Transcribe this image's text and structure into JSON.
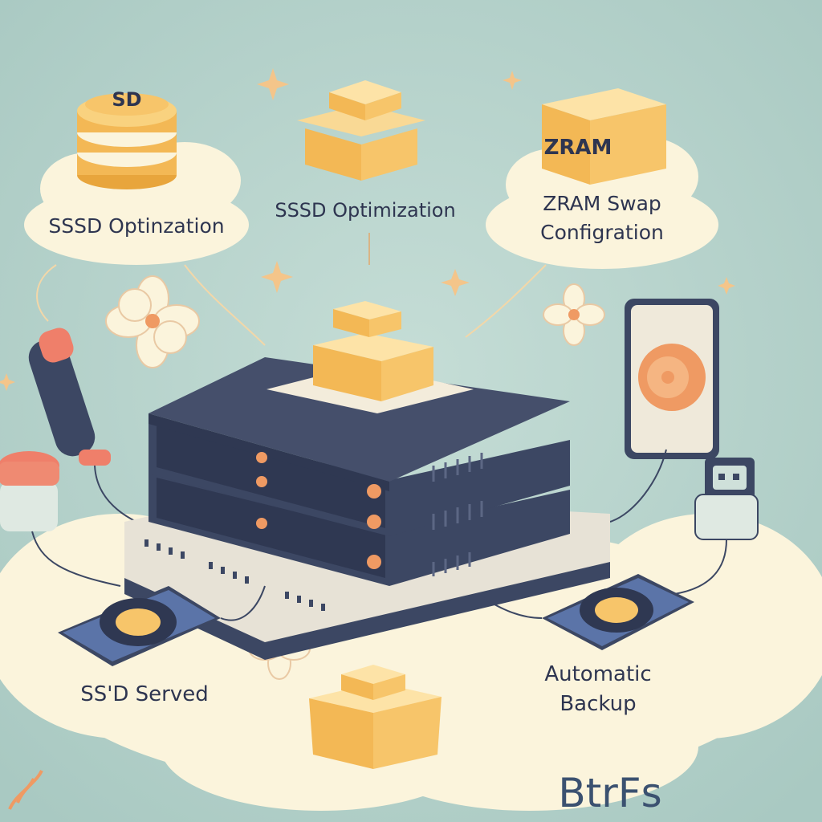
{
  "labels": {
    "sd_badge": "SD",
    "top_left": "SSSD Optinzation",
    "top_center": "SSSD Optimization",
    "zram_badge": "ZRAM",
    "zram_line1": "ZRAM Swap",
    "zram_line2": "Configration",
    "bottom_left": "SS'D Served",
    "backup_line1": "Automatic",
    "backup_line2": "Backup",
    "watermark": "BtrFs"
  },
  "colors": {
    "background": "#b4d2cb",
    "cloud": "#fbf4dc",
    "box": "#f7c56a",
    "server": "#3c4763",
    "accent": "#ef9a63"
  }
}
